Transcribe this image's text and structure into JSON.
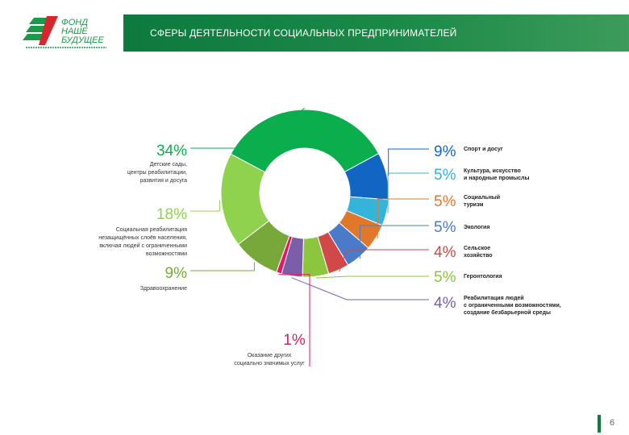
{
  "header": {
    "title": "СФЕРЫ ДЕЯТЕЛЬНОСТИ СОЦИАЛЬНЫХ ПРЕДПРИНИМАТЕЛЕЙ",
    "logo_text": [
      "ФОНД",
      "НАШЕ",
      "БУДУЩЕЕ"
    ]
  },
  "page_number": "6",
  "chart_data": {
    "type": "pie",
    "variant": "donut",
    "title": "",
    "slices": [
      {
        "label": "Детские сады, центры реабилитации, развития и досуга",
        "value": 34,
        "display": "34%",
        "color": "#0aae4c",
        "side": "left"
      },
      {
        "label": "Спорт и досуг",
        "value": 9,
        "display": "9%",
        "color": "#1166c4",
        "side": "right"
      },
      {
        "label": "Культура, искусство и народные промыслы",
        "value": 5,
        "display": "5%",
        "color": "#34b4d8",
        "side": "right"
      },
      {
        "label": "Социальный туризм",
        "value": 5,
        "display": "5%",
        "color": "#e0782c",
        "side": "right"
      },
      {
        "label": "Экология",
        "value": 5,
        "display": "5%",
        "color": "#4a7bc8",
        "side": "right"
      },
      {
        "label": "Сельское хозяйство",
        "value": 4,
        "display": "4%",
        "color": "#d04848",
        "side": "right"
      },
      {
        "label": "Геронтология",
        "value": 5,
        "display": "5%",
        "color": "#8cc63e",
        "side": "right"
      },
      {
        "label": "Реабилитация людей с ограниченными возможностями, создание безбарьерной среды",
        "value": 4,
        "display": "4%",
        "color": "#7b5ea8",
        "side": "right"
      },
      {
        "label": "Оказание других социально значимых услуг",
        "value": 1,
        "display": "1%",
        "color": "#e6176a",
        "side": "bottom"
      },
      {
        "label": "Здравоохранение",
        "value": 9,
        "display": "9%",
        "color": "#79a83a",
        "side": "left"
      },
      {
        "label": "Социальная реабилитация незащищённых слоёв населения, включая людей с ограниченными возможностями",
        "value": 18,
        "display": "18%",
        "color": "#8fd24e",
        "side": "left"
      }
    ]
  },
  "captions": {
    "kindergartens": [
      "Детские сады,",
      "центры реабилитации,",
      "развития и досуга"
    ],
    "sport": [
      "Спорт и досуг"
    ],
    "culture": [
      "Культура, искусство",
      "и народные промыслы"
    ],
    "tourism": [
      "Социальный",
      "туризм"
    ],
    "ecology": [
      "Экология"
    ],
    "agriculture": [
      "Сельское",
      "хозяйство"
    ],
    "gerontology": [
      "Геронтология"
    ],
    "disabled": [
      "Реабилитация людей",
      "с ограниченными возможностями,",
      "создание безбарьерной среды"
    ],
    "other": [
      "Оказание других",
      "социально значимых услуг"
    ],
    "health": [
      "Здравоохранение"
    ],
    "social": [
      "Социальная реабилитация",
      "незащищённых слоёв населения,",
      "включая людей с ограниченными",
      "возможностями"
    ]
  },
  "colors": {
    "header_green": "#0d7a3e",
    "logo_green": "#1a9a4a",
    "logo_red": "#d8262f"
  }
}
